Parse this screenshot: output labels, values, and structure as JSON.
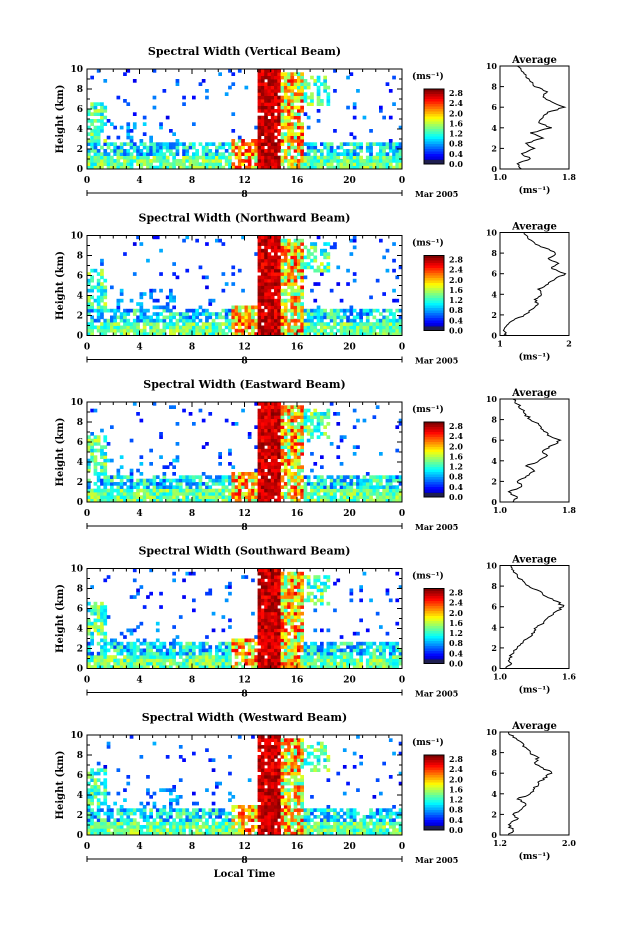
{
  "chart_data": [
    {
      "type": "heatmap",
      "title": "Spectral Width (Vertical Beam)",
      "ylabel": "Height (km)",
      "x_ticks": [
        "0",
        "4",
        "8",
        "12",
        "16",
        "20",
        "0"
      ],
      "xlim": [
        0,
        24
      ],
      "y_ticks": [
        "0",
        "2",
        "4",
        "6",
        "8",
        "10"
      ],
      "ylim": [
        0,
        10
      ],
      "day_label": "8",
      "date_label": "Mar 2005",
      "colorbar": {
        "unit": "(ms⁻¹)",
        "ticks": [
          "2.8",
          "2.4",
          "2.0",
          "1.6",
          "1.2",
          "0.8",
          "0.4",
          "0.0"
        ],
        "range": [
          0.0,
          3.0
        ]
      },
      "profile": {
        "title": "Average",
        "xlabel": "(ms⁻¹)",
        "x_ticks": [
          "1.0",
          "1.8"
        ],
        "xlim": [
          1.0,
          1.8
        ],
        "y_ticks": [
          "0",
          "2",
          "4",
          "6",
          "8",
          "10"
        ],
        "heights": [
          0,
          0.5,
          1,
          1.5,
          2,
          2.5,
          3,
          3.5,
          4,
          4.5,
          5,
          5.5,
          6,
          6.5,
          7,
          7.5,
          8,
          8.5,
          9,
          9.5,
          10
        ],
        "values": [
          1.25,
          1.2,
          1.35,
          1.25,
          1.4,
          1.3,
          1.5,
          1.35,
          1.6,
          1.45,
          1.5,
          1.55,
          1.75,
          1.6,
          1.5,
          1.55,
          1.4,
          1.35,
          1.3,
          1.25,
          1.2
        ]
      }
    },
    {
      "type": "heatmap",
      "title": "Spectral Width (Northward Beam)",
      "ylabel": "Height (km)",
      "x_ticks": [
        "0",
        "4",
        "8",
        "12",
        "16",
        "20",
        "0"
      ],
      "xlim": [
        0,
        24
      ],
      "y_ticks": [
        "0",
        "2",
        "4",
        "6",
        "8",
        "10"
      ],
      "ylim": [
        0,
        10
      ],
      "day_label": "8",
      "date_label": "Mar 2005",
      "colorbar": {
        "unit": "(ms⁻¹)",
        "ticks": [
          "2.8",
          "2.4",
          "2.0",
          "1.6",
          "1.2",
          "0.8",
          "0.4",
          "0.0"
        ],
        "range": [
          0.0,
          3.0
        ]
      },
      "profile": {
        "title": "Average",
        "xlabel": "(ms⁻¹)",
        "x_ticks": [
          "1",
          "2"
        ],
        "xlim": [
          1.0,
          2.0
        ],
        "y_ticks": [
          "0",
          "2",
          "4",
          "6",
          "8",
          "10"
        ],
        "heights": [
          0,
          0.5,
          1,
          1.5,
          2,
          2.5,
          3,
          3.5,
          4,
          4.5,
          5,
          5.5,
          6,
          6.5,
          7,
          7.5,
          8,
          8.5,
          9,
          9.5,
          10
        ],
        "values": [
          1.1,
          1.05,
          1.1,
          1.2,
          1.35,
          1.45,
          1.55,
          1.5,
          1.6,
          1.55,
          1.7,
          1.8,
          1.95,
          1.75,
          1.85,
          1.7,
          1.8,
          1.65,
          1.5,
          1.4,
          1.35
        ]
      }
    },
    {
      "type": "heatmap",
      "title": "Spectral Width (Eastward Beam)",
      "ylabel": "Height (km)",
      "x_ticks": [
        "0",
        "4",
        "8",
        "12",
        "16",
        "20",
        "0"
      ],
      "xlim": [
        0,
        24
      ],
      "y_ticks": [
        "0",
        "2",
        "4",
        "6",
        "8",
        "10"
      ],
      "ylim": [
        0,
        10
      ],
      "day_label": "8",
      "date_label": "Mar 2005",
      "colorbar": {
        "unit": "(ms⁻¹)",
        "ticks": [
          "2.8",
          "2.4",
          "2.0",
          "1.6",
          "1.2",
          "0.8",
          "0.4",
          "0.0"
        ],
        "range": [
          0.0,
          3.0
        ]
      },
      "profile": {
        "title": "Average",
        "xlabel": "",
        "x_ticks": [
          "1.0",
          "1.8"
        ],
        "xlim": [
          1.0,
          1.8
        ],
        "y_ticks": [
          "0",
          "2",
          "4",
          "6",
          "8",
          "10"
        ],
        "heights": [
          0,
          0.5,
          1,
          1.5,
          2,
          2.5,
          3,
          3.5,
          4,
          4.5,
          5,
          5.5,
          6,
          6.5,
          7,
          7.5,
          8,
          8.5,
          9,
          9.5,
          10
        ],
        "values": [
          1.15,
          1.2,
          1.1,
          1.25,
          1.2,
          1.3,
          1.4,
          1.3,
          1.45,
          1.55,
          1.5,
          1.6,
          1.7,
          1.55,
          1.5,
          1.45,
          1.35,
          1.3,
          1.25,
          1.2,
          1.15
        ]
      }
    },
    {
      "type": "heatmap",
      "title": "Spectral Width (Southward Beam)",
      "ylabel": "Height (km)",
      "x_ticks": [
        "0",
        "4",
        "8",
        "12",
        "16",
        "20",
        "0"
      ],
      "xlim": [
        0,
        24
      ],
      "y_ticks": [
        "0",
        "2",
        "4",
        "6",
        "8",
        "10"
      ],
      "ylim": [
        0,
        10
      ],
      "day_label": "8",
      "date_label": "Mar 2005",
      "colorbar": {
        "unit": "(ms⁻¹)",
        "ticks": [
          "2.8",
          "2.4",
          "2.0",
          "1.6",
          "1.2",
          "0.8",
          "0.4",
          "0.0"
        ],
        "range": [
          0.0,
          3.0
        ]
      },
      "profile": {
        "title": "Average",
        "xlabel": "(ms⁻¹)",
        "x_ticks": [
          "1.0",
          "1.6"
        ],
        "xlim": [
          1.0,
          1.6
        ],
        "y_ticks": [
          "0",
          "2",
          "4",
          "6",
          "8",
          "10"
        ],
        "heights": [
          0,
          0.5,
          1,
          1.5,
          2,
          2.5,
          3,
          3.5,
          4,
          4.5,
          5,
          5.5,
          6,
          6.5,
          7,
          7.5,
          8,
          8.5,
          9,
          9.5,
          10
        ],
        "values": [
          1.05,
          1.1,
          1.08,
          1.12,
          1.15,
          1.2,
          1.25,
          1.3,
          1.32,
          1.38,
          1.42,
          1.48,
          1.55,
          1.5,
          1.4,
          1.35,
          1.25,
          1.2,
          1.15,
          1.12,
          1.1
        ]
      }
    },
    {
      "type": "heatmap",
      "title": "Spectral Width (Westward Beam)",
      "ylabel": "Height (km)",
      "xlabel": "Local Time",
      "x_ticks": [
        "0",
        "4",
        "8",
        "12",
        "16",
        "20",
        "0"
      ],
      "xlim": [
        0,
        24
      ],
      "y_ticks": [
        "0",
        "2",
        "4",
        "6",
        "8",
        "10"
      ],
      "ylim": [
        0,
        10
      ],
      "day_label": "8",
      "date_label": "Mar 2005",
      "colorbar": {
        "unit": "(ms⁻¹)",
        "ticks": [
          "2.8",
          "2.4",
          "2.0",
          "1.6",
          "1.2",
          "0.8",
          "0.4",
          "0.0"
        ],
        "range": [
          0.0,
          3.0
        ]
      },
      "profile": {
        "title": "Average",
        "xlabel": "(ms⁻¹)",
        "x_ticks": [
          "1.2",
          "2.0"
        ],
        "xlim": [
          1.2,
          2.0
        ],
        "y_ticks": [
          "0",
          "2",
          "4",
          "6",
          "8",
          "10"
        ],
        "heights": [
          0,
          0.5,
          1,
          1.5,
          2,
          2.5,
          3,
          3.5,
          4,
          4.5,
          5,
          5.5,
          6,
          6.5,
          7,
          7.5,
          8,
          8.5,
          9,
          9.5,
          10
        ],
        "values": [
          1.3,
          1.35,
          1.3,
          1.4,
          1.35,
          1.45,
          1.5,
          1.4,
          1.55,
          1.6,
          1.65,
          1.7,
          1.8,
          1.7,
          1.6,
          1.65,
          1.55,
          1.5,
          1.45,
          1.35,
          1.3
        ]
      }
    }
  ]
}
